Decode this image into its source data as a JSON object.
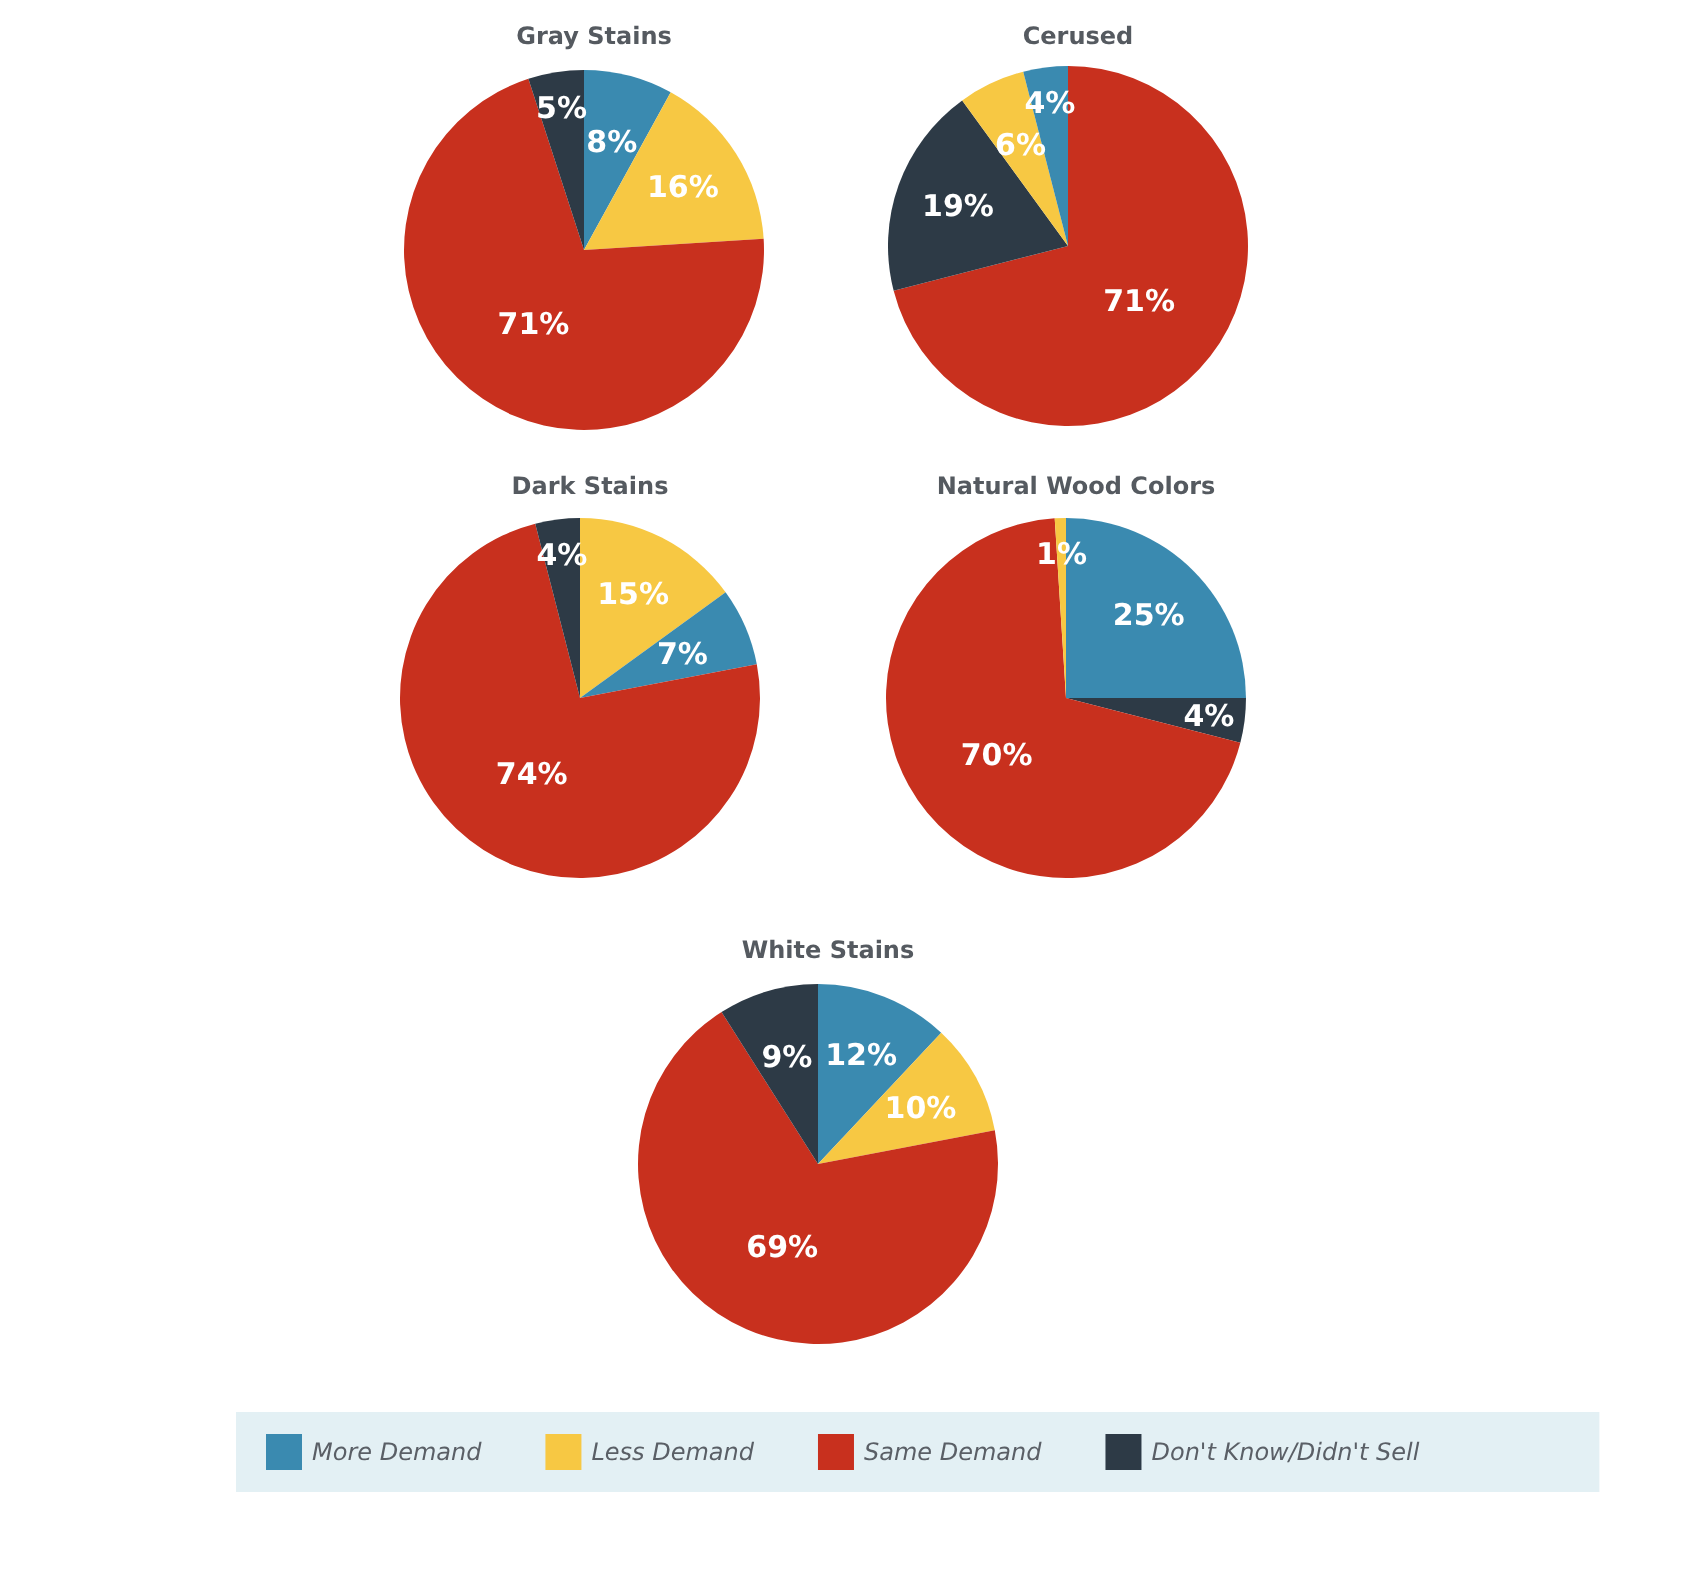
{
  "chart_data": [
    {
      "type": "pie",
      "title": "Gray Stains",
      "categories": [
        null,
        null,
        null,
        null
      ],
      "values": [
        8,
        16,
        71,
        5
      ],
      "colors": [
        "#3a8ab0",
        "#f7c843",
        "#c8301e",
        "#2d3a46"
      ],
      "value_labels": [
        "8%",
        "16%",
        "71%",
        "5%"
      ]
    },
    {
      "type": "pie",
      "title": "Cerused",
      "categories": [
        null,
        null,
        null,
        null
      ],
      "values": [
        71,
        19,
        6,
        4
      ],
      "colors": [
        "#c8301e",
        "#2d3a46",
        "#f7c843",
        "#3a8ab0"
      ],
      "value_labels": [
        "71%",
        "19%",
        "6%",
        "4%"
      ]
    },
    {
      "type": "pie",
      "title": "Dark Stains",
      "categories": [
        null,
        null,
        null,
        null
      ],
      "values": [
        15,
        7,
        74,
        4
      ],
      "colors": [
        "#f7c843",
        "#3a8ab0",
        "#c8301e",
        "#2d3a46"
      ],
      "value_labels": [
        "15%",
        "7%",
        "74%",
        "4%"
      ]
    },
    {
      "type": "pie",
      "title": "Natural Wood Colors",
      "categories": [
        null,
        null,
        null,
        null
      ],
      "values": [
        25,
        4,
        70,
        1
      ],
      "colors": [
        "#3a8ab0",
        "#2d3a46",
        "#c8301e",
        "#f7c843"
      ],
      "value_labels": [
        "25%",
        "4%",
        "70%",
        "1%"
      ]
    },
    {
      "type": "pie",
      "title": "White Stains",
      "categories": [
        "More Demand",
        "Less Demand",
        "Same Demand",
        "Don't Know/Didn't Sell"
      ],
      "values": [
        12,
        10,
        69,
        9
      ],
      "colors": [
        "#3a8ab0",
        "#f7c843",
        "#c8301e",
        "#2d3a46"
      ],
      "value_labels": [
        "12%",
        "10%",
        "69%",
        "9%"
      ],
      "legend": "bottom"
    }
  ]
}
